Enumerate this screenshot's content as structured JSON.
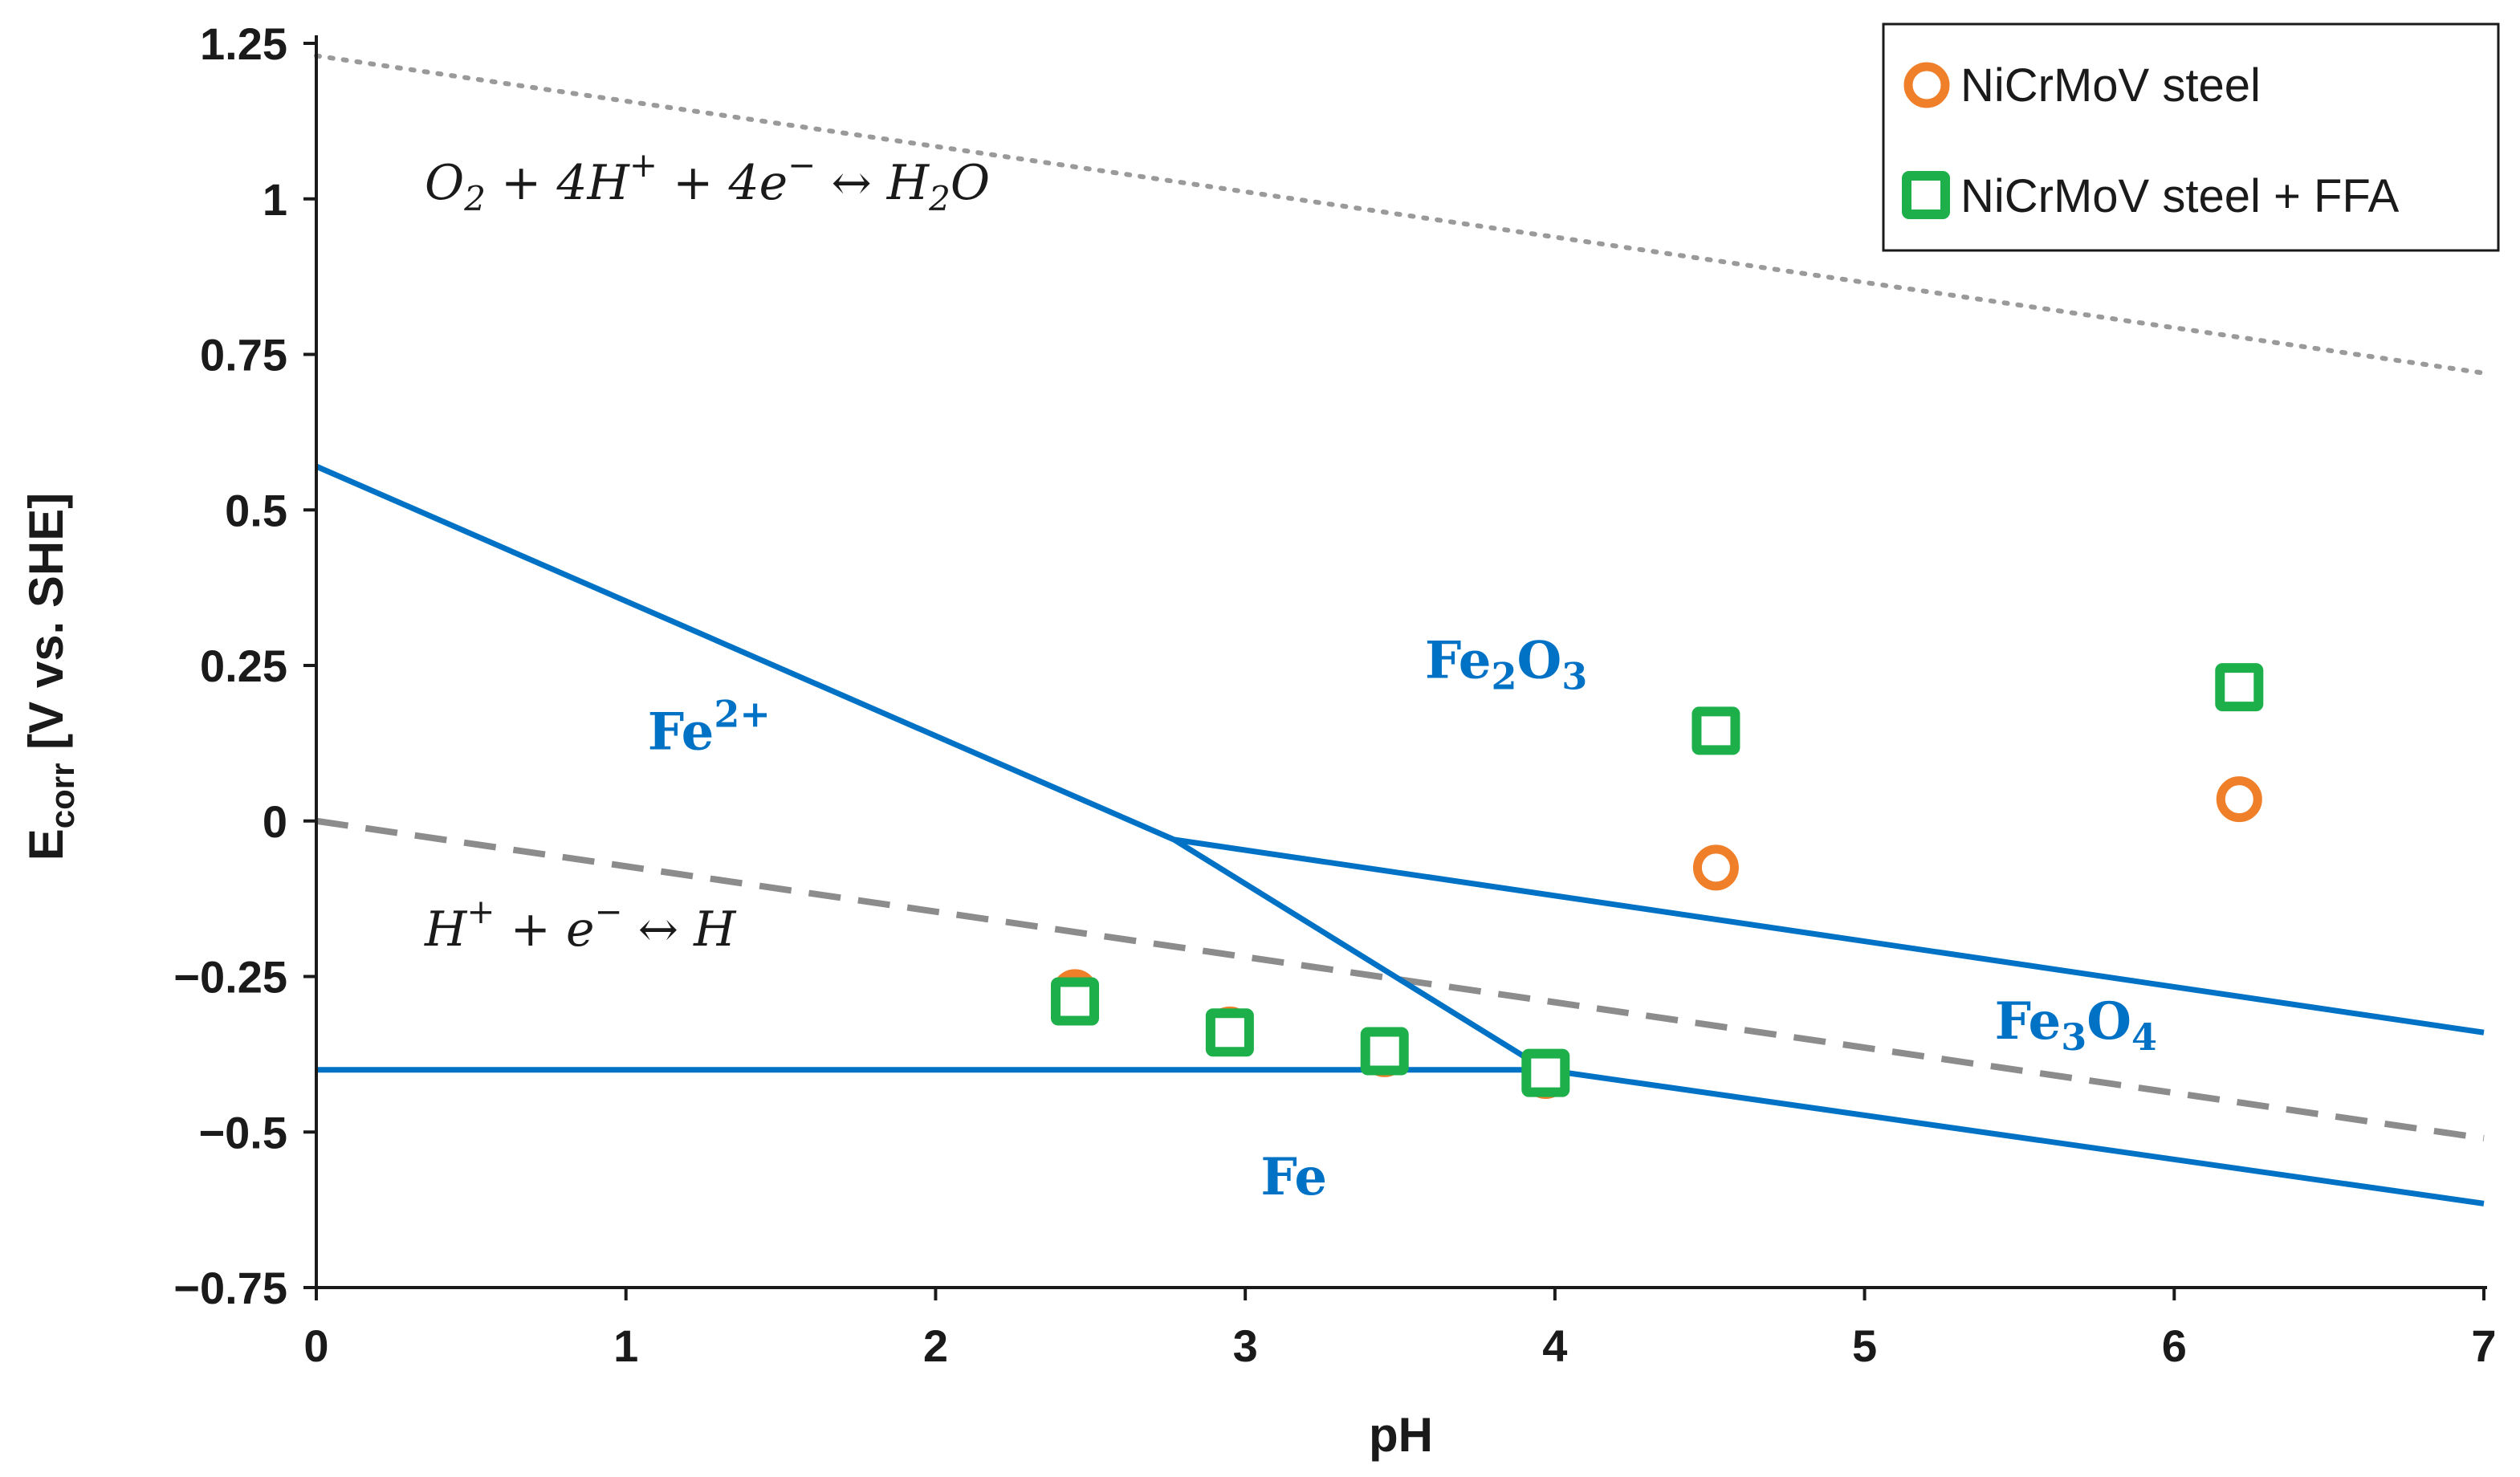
{
  "chart_data": {
    "type": "scatter",
    "xlabel": "pH",
    "ylabel": "E_corr [V vs. SHE]",
    "ylabel_main": "E",
    "ylabel_sub": "corr",
    "ylabel_rest": " [V vs. SHE]",
    "xlim": [
      0,
      7
    ],
    "ylim": [
      -0.75,
      1.25
    ],
    "grid": false,
    "legend_position": "top-right",
    "x_ticks": [
      "0",
      "1",
      "2",
      "3",
      "4",
      "5",
      "6",
      "7"
    ],
    "y_ticks": [
      {
        "value": 1.25,
        "label": "1.25"
      },
      {
        "value": 1.0,
        "label": "1"
      },
      {
        "value": 0.75,
        "label": "0.75"
      },
      {
        "value": 0.5,
        "label": "0.5"
      },
      {
        "value": 0.25,
        "label": "0.25"
      },
      {
        "value": 0.0,
        "label": "0"
      },
      {
        "value": -0.25,
        "label": "−0.25"
      },
      {
        "value": -0.5,
        "label": "−0.5"
      },
      {
        "value": -0.75,
        "label": "−0.75"
      }
    ],
    "series": [
      {
        "name": "NiCrMoV steel",
        "marker": "circle",
        "color": "#f07f2a",
        "x": [
          2.45,
          2.95,
          3.45,
          3.97,
          4.52,
          6.21
        ],
        "y": [
          -0.275,
          -0.335,
          -0.375,
          -0.41,
          -0.075,
          0.035
        ]
      },
      {
        "name": "NiCrMoV steel + FFA",
        "marker": "square",
        "color": "#1db04a",
        "x": [
          2.45,
          2.95,
          3.45,
          3.97,
          4.52,
          6.21
        ],
        "y": [
          -0.29,
          -0.34,
          -0.37,
          -0.405,
          0.145,
          0.215
        ]
      }
    ],
    "lines": [
      {
        "name": "O2 / H2O equilibrium",
        "style": "dotted",
        "color": "#9a9a9a",
        "x": [
          0,
          7
        ],
        "y": [
          1.23,
          0.72
        ]
      },
      {
        "name": "H+ / H equilibrium",
        "style": "dashed",
        "color": "#8c8c8c",
        "x": [
          0,
          7
        ],
        "y": [
          0.0,
          -0.51
        ]
      },
      {
        "name": "Fe2+ / Fe2O3 boundary",
        "style": "solid",
        "color": "#0072c6",
        "x": [
          0,
          2.77,
          3.97
        ],
        "y": [
          0.57,
          -0.03,
          -0.4
        ]
      },
      {
        "name": "Fe2O3 / Fe3O4 boundary",
        "style": "solid",
        "color": "#0072c6",
        "x": [
          2.77,
          7
        ],
        "y": [
          -0.03,
          -0.34
        ]
      },
      {
        "name": "Fe / Fe2+ boundary",
        "style": "solid",
        "color": "#0072c6",
        "x": [
          0,
          3.97
        ],
        "y": [
          -0.4,
          -0.4
        ]
      },
      {
        "name": "Fe / Fe3O4 boundary",
        "style": "solid",
        "color": "#0072c6",
        "x": [
          3.97,
          7
        ],
        "y": [
          -0.4,
          -0.615
        ]
      }
    ],
    "annotations": [
      {
        "kind": "eq",
        "x": 0.35,
        "y": 1.0,
        "parts": [
          [
            "O",
            ""
          ],
          [
            "2",
            "sub"
          ],
          [
            " + 4H",
            ""
          ],
          [
            "+",
            "sup"
          ],
          [
            " + 4e",
            ""
          ],
          [
            "−",
            "sup"
          ],
          [
            " ↔ H",
            ""
          ],
          [
            "2",
            "sub"
          ],
          [
            "O",
            ""
          ]
        ]
      },
      {
        "kind": "eq",
        "x": 0.35,
        "y": -0.2,
        "parts": [
          [
            "H",
            ""
          ],
          [
            "+",
            "sup"
          ],
          [
            " + e",
            ""
          ],
          [
            "−",
            "sup"
          ],
          [
            " ↔ H",
            ""
          ]
        ]
      },
      {
        "kind": "region",
        "x": 1.07,
        "y": 0.115,
        "parts": [
          [
            "Fe",
            ""
          ],
          [
            "2+",
            "sup"
          ]
        ]
      },
      {
        "kind": "region",
        "x": 3.58,
        "y": 0.23,
        "parts": [
          [
            "Fe",
            ""
          ],
          [
            "2",
            "sub"
          ],
          [
            "O",
            ""
          ],
          [
            "3",
            "sub"
          ]
        ]
      },
      {
        "kind": "region",
        "x": 5.42,
        "y": -0.35,
        "parts": [
          [
            "Fe",
            ""
          ],
          [
            "3",
            "sub"
          ],
          [
            "O",
            ""
          ],
          [
            "4",
            "sub"
          ]
        ]
      },
      {
        "kind": "region",
        "x": 3.05,
        "y": -0.6,
        "parts": [
          [
            "Fe",
            ""
          ]
        ]
      }
    ]
  }
}
